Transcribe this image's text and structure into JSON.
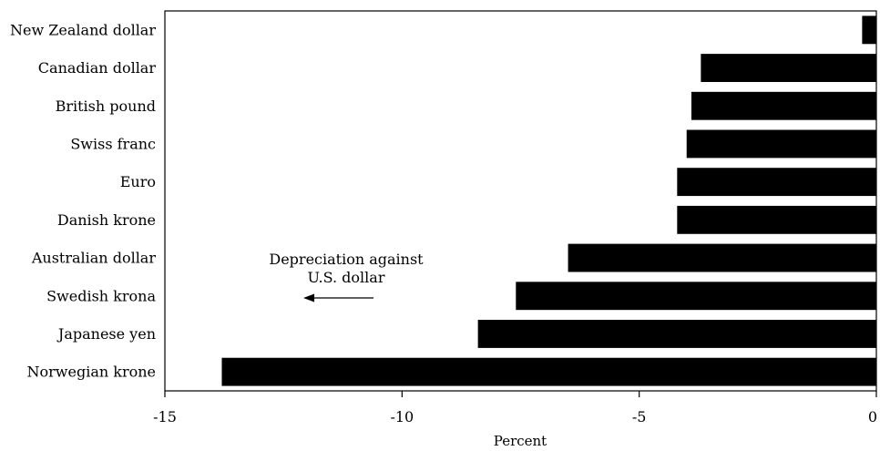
{
  "chart_data": {
    "type": "bar",
    "orientation": "horizontal",
    "categories": [
      "New Zealand dollar",
      "Canadian dollar",
      "British pound",
      "Swiss franc",
      "Euro",
      "Danish krone",
      "Australian dollar",
      "Swedish krona",
      "Japanese yen",
      "Norwegian krone"
    ],
    "values": [
      -0.3,
      -3.7,
      -3.9,
      -4.0,
      -4.2,
      -4.2,
      -6.5,
      -7.6,
      -8.4,
      -13.8
    ],
    "xlabel": "Percent",
    "ylabel": "",
    "xlim": [
      -15,
      0
    ],
    "xticks": [
      "-15",
      "-10",
      "-5",
      "0"
    ],
    "bar_color": "#000000",
    "grid": false,
    "annotation": {
      "lines": [
        "Depreciation against",
        "U.S. dollar"
      ],
      "arrow_direction": "left"
    }
  }
}
